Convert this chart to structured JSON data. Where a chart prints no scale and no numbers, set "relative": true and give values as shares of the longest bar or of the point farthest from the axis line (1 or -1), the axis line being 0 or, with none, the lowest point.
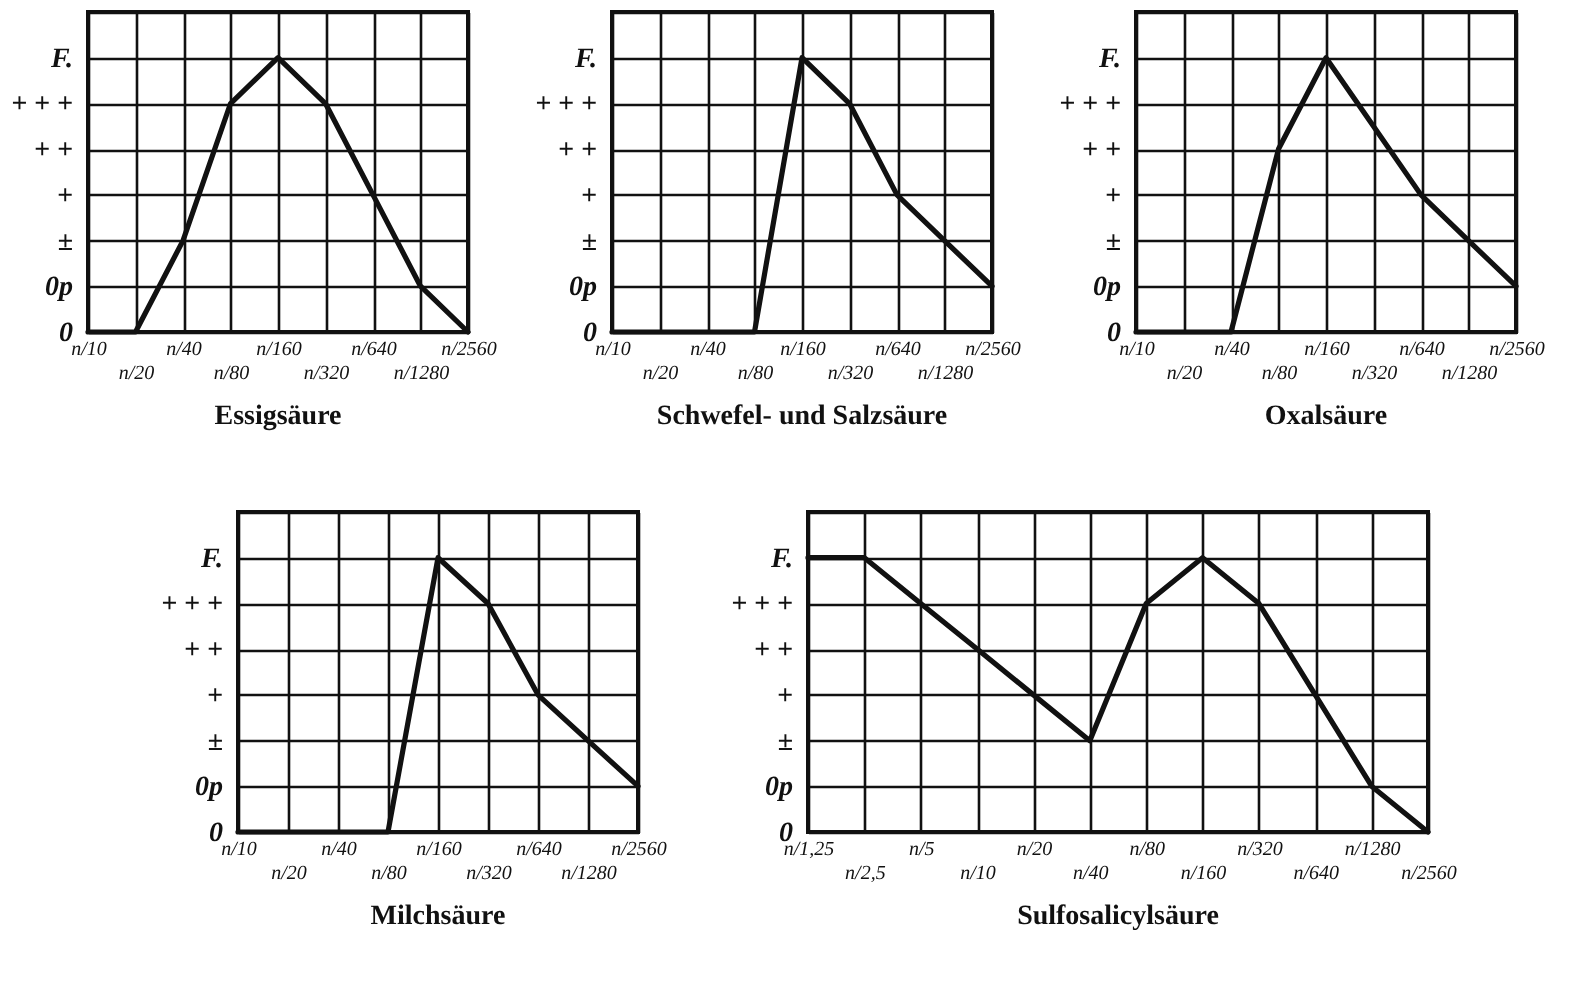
{
  "chart_data": [
    {
      "type": "line",
      "title": "Essigsäure",
      "categories": [
        "n/10",
        "n/20",
        "n/40",
        "n/80",
        "n/160",
        "n/320",
        "n/640",
        "n/1280",
        "n/2560"
      ],
      "values": [
        0,
        0,
        0.333,
        0.833,
        1,
        0.833,
        0.5,
        0.167,
        0
      ],
      "color": "#111111",
      "relative": true,
      "annotations": [
        "0",
        "0p",
        "±",
        "+",
        "+ +",
        "+ + +",
        "F."
      ],
      "grid": true
    },
    {
      "type": "line",
      "title": "Schwefel- und Salzsäure",
      "categories": [
        "n/10",
        "n/20",
        "n/40",
        "n/80",
        "n/160",
        "n/320",
        "n/640",
        "n/1280",
        "n/2560"
      ],
      "values": [
        0,
        0,
        0,
        0,
        1,
        0.833,
        0.5,
        0.333,
        0.167
      ],
      "color": "#111111",
      "relative": true,
      "annotations": [
        "0",
        "0p",
        "±",
        "+",
        "+ +",
        "+ + +",
        "F."
      ],
      "grid": true
    },
    {
      "type": "line",
      "title": "Oxalsäure",
      "categories": [
        "n/10",
        "n/20",
        "n/40",
        "n/80",
        "n/160",
        "n/320",
        "n/640",
        "n/1280",
        "n/2560"
      ],
      "values": [
        0,
        0,
        0,
        0.667,
        1,
        0.75,
        0.5,
        0.333,
        0.167
      ],
      "color": "#111111",
      "relative": true,
      "annotations": [
        "0",
        "0p",
        "±",
        "+",
        "+ +",
        "+ + +",
        "F."
      ],
      "grid": true
    },
    {
      "type": "line",
      "title": "Milchsäure",
      "categories": [
        "n/10",
        "n/20",
        "n/40",
        "n/80",
        "n/160",
        "n/320",
        "n/640",
        "n/1280",
        "n/2560"
      ],
      "values": [
        0,
        0,
        0,
        0,
        1,
        0.833,
        0.5,
        0.333,
        0.167
      ],
      "color": "#111111",
      "relative": true,
      "annotations": [
        "0",
        "0p",
        "±",
        "+",
        "+ +",
        "+ + +",
        "F."
      ],
      "grid": true
    },
    {
      "type": "line",
      "title": "Sulfosalicylsäure",
      "categories": [
        "n/1,25",
        "n/2,5",
        "n/5",
        "n/10",
        "n/20",
        "n/40",
        "n/80",
        "n/160",
        "n/320",
        "n/640",
        "n/1280",
        "n/2560"
      ],
      "values": [
        1,
        1,
        0.833,
        0.667,
        0.5,
        0.333,
        0.833,
        1,
        0.833,
        0.5,
        0.167,
        0
      ],
      "color": "#111111",
      "relative": true,
      "annotations": [
        "0",
        "0p",
        "±",
        "+",
        "+ +",
        "+ + +",
        "F."
      ],
      "grid": true
    }
  ]
}
